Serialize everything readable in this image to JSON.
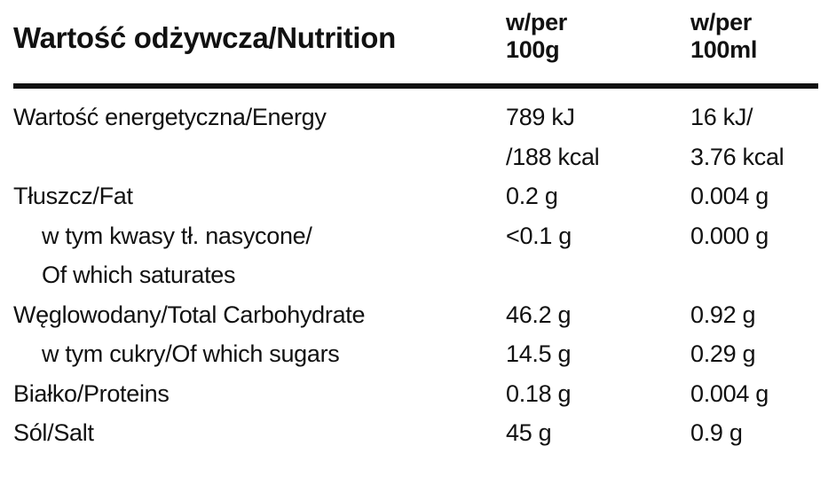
{
  "header": {
    "title": "Wartość odżywcza/Nutrition",
    "columns": [
      [
        "w/per",
        "100g"
      ],
      [
        "w/per",
        "100ml"
      ]
    ]
  },
  "table": {
    "rows": [
      {
        "label": [
          "Wartość energetyczna/Energy"
        ],
        "cells": [
          [
            "789 kJ",
            "/188 kcal"
          ],
          [
            "16 kJ/",
            "3.76 kcal"
          ]
        ],
        "indent": false
      },
      {
        "label": [
          "Tłuszcz/Fat"
        ],
        "cells": [
          [
            "0.2 g"
          ],
          [
            "0.004 g"
          ]
        ],
        "indent": false
      },
      {
        "label": [
          "w tym kwasy tł. nasycone/",
          "Of which saturates"
        ],
        "cells": [
          [
            "<0.1 g"
          ],
          [
            "0.000 g"
          ]
        ],
        "indent": true
      },
      {
        "label": [
          "Węglowodany/Total Carbohydrate"
        ],
        "cells": [
          [
            "46.2 g"
          ],
          [
            "0.92 g"
          ]
        ],
        "indent": false
      },
      {
        "label": [
          "w tym cukry/Of which sugars"
        ],
        "cells": [
          [
            "14.5 g"
          ],
          [
            "0.29 g"
          ]
        ],
        "indent": true
      },
      {
        "label": [
          "Białko/Proteins"
        ],
        "cells": [
          [
            "0.18 g"
          ],
          [
            "0.004 g"
          ]
        ],
        "indent": false
      },
      {
        "label": [
          "Sól/Salt"
        ],
        "cells": [
          [
            "45 g"
          ],
          [
            "0.9 g"
          ]
        ],
        "indent": false
      }
    ]
  }
}
